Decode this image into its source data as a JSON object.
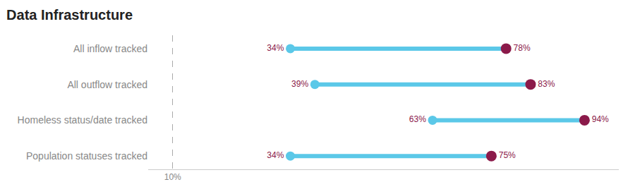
{
  "chart_data": {
    "type": "dumbbell",
    "title": "Data Infrastructure",
    "categories": [
      "All inflow tracked",
      "All outflow tracked",
      "Homeless status/date tracked",
      "Population statuses tracked"
    ],
    "series": [
      {
        "color": "#5BC8E8",
        "values": [
          34,
          39,
          63,
          34
        ],
        "value_labels": [
          "34%",
          "39%",
          "63%",
          "34%"
        ]
      },
      {
        "color": "#8B1A4A",
        "values": [
          78,
          83,
          94,
          75
        ],
        "value_labels": [
          "78%",
          "83%",
          "94%",
          "75%"
        ]
      }
    ],
    "xlim": [
      5,
      101
    ],
    "xticks": [
      {
        "value": 10,
        "label": "10%"
      }
    ],
    "grid": true,
    "data_labels": true
  }
}
